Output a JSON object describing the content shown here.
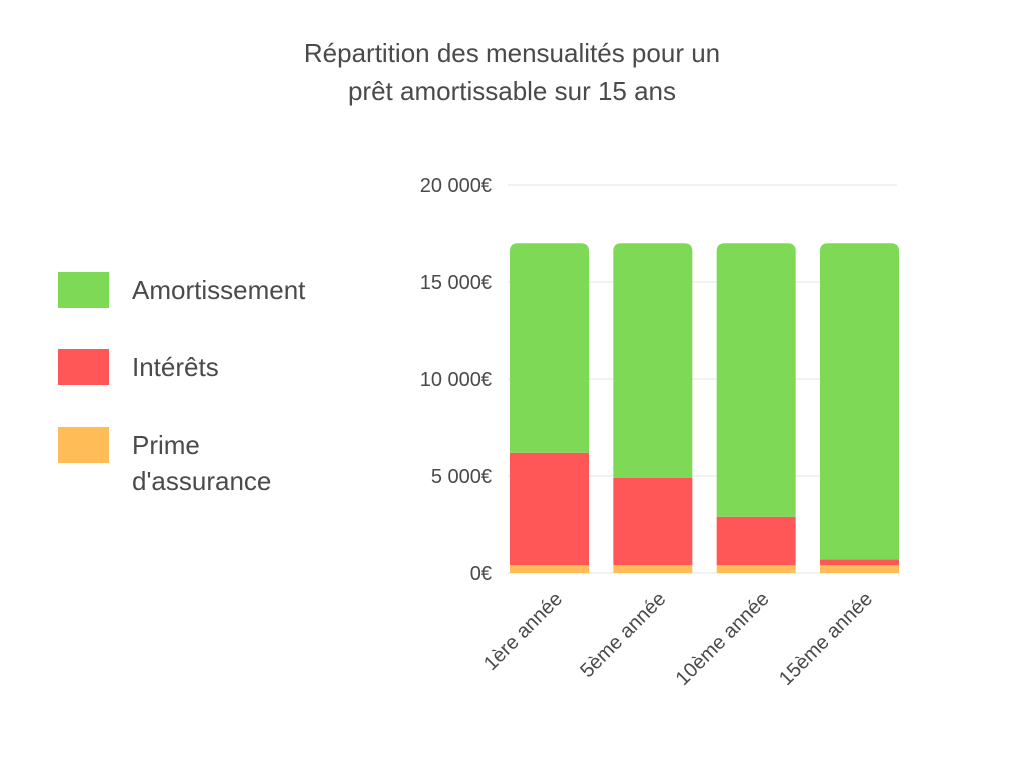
{
  "chart_data": {
    "type": "bar",
    "stacked": true,
    "title_lines": [
      "Répartition des mensualités pour un",
      "prêt amortissable sur 15 ans"
    ],
    "categories": [
      "1ère année",
      "5ème année",
      "10ème année",
      "15ème année"
    ],
    "series": [
      {
        "name": "Prime d'assurance",
        "color": "#FFBC57",
        "values": [
          400,
          400,
          400,
          400
        ]
      },
      {
        "name": "Intérêts",
        "color": "#FF5757",
        "values": [
          5800,
          4500,
          2500,
          300
        ]
      },
      {
        "name": "Amortissement",
        "color": "#7ED957",
        "values": [
          10800,
          12100,
          14100,
          16300
        ]
      }
    ],
    "legend": {
      "placement": "left",
      "items": [
        {
          "label": "Amortissement",
          "color": "#7ED957"
        },
        {
          "label": "Intérêts",
          "color": "#FF5757"
        },
        {
          "label": "Prime\nd'assurance",
          "color": "#FFBC57"
        }
      ]
    },
    "yticks": [
      {
        "value": 0,
        "label": "0€"
      },
      {
        "value": 5000,
        "label": "5 000€"
      },
      {
        "value": 10000,
        "label": "10 000€"
      },
      {
        "value": 15000,
        "label": "15 000€"
      },
      {
        "value": 20000,
        "label": "20 000€"
      }
    ],
    "ylim": [
      0,
      20000
    ],
    "grid": true,
    "xlabel": "",
    "ylabel": ""
  }
}
